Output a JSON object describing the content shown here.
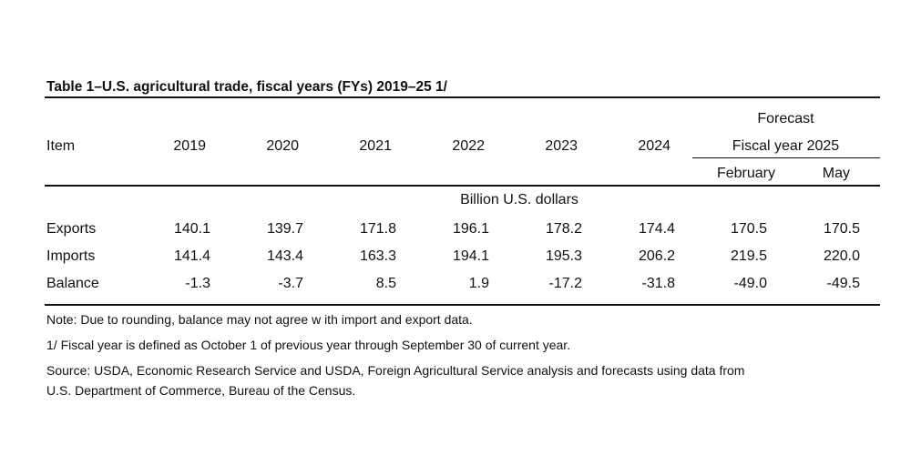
{
  "table": {
    "title": "Table 1–U.S. agricultural trade, fiscal years (FYs) 2019–25 1/",
    "header": {
      "item": "Item",
      "years": [
        "2019",
        "2020",
        "2021",
        "2022",
        "2023",
        "2024"
      ],
      "forecast": "Forecast",
      "fiscal_year": "Fiscal year 2025",
      "months": [
        "February",
        "May"
      ]
    },
    "units": "Billion U.S. dollars",
    "rows": [
      {
        "label": "Exports",
        "values": [
          "140.1",
          "139.7",
          "171.8",
          "196.1",
          "178.2",
          "174.4",
          "170.5",
          "170.5"
        ]
      },
      {
        "label": "Imports",
        "values": [
          "141.4",
          "143.4",
          "163.3",
          "194.1",
          "195.3",
          "206.2",
          "219.5",
          "220.0"
        ]
      },
      {
        "label": "Balance",
        "values": [
          "-1.3",
          "-3.7",
          "8.5",
          "1.9",
          "-17.2",
          "-31.8",
          "-49.0",
          "-49.5"
        ]
      }
    ],
    "notes": [
      "Note: Due to rounding, balance may not agree w ith import and export data.",
      "1/ Fiscal year is defined as October 1 of previous year through September 30 of current year.",
      "Source: USDA, Economic Research Service and USDA, Foreign Agricultural Service analysis and forecasts using data from",
      "U.S. Department of Commerce, Bureau of the Census."
    ]
  }
}
